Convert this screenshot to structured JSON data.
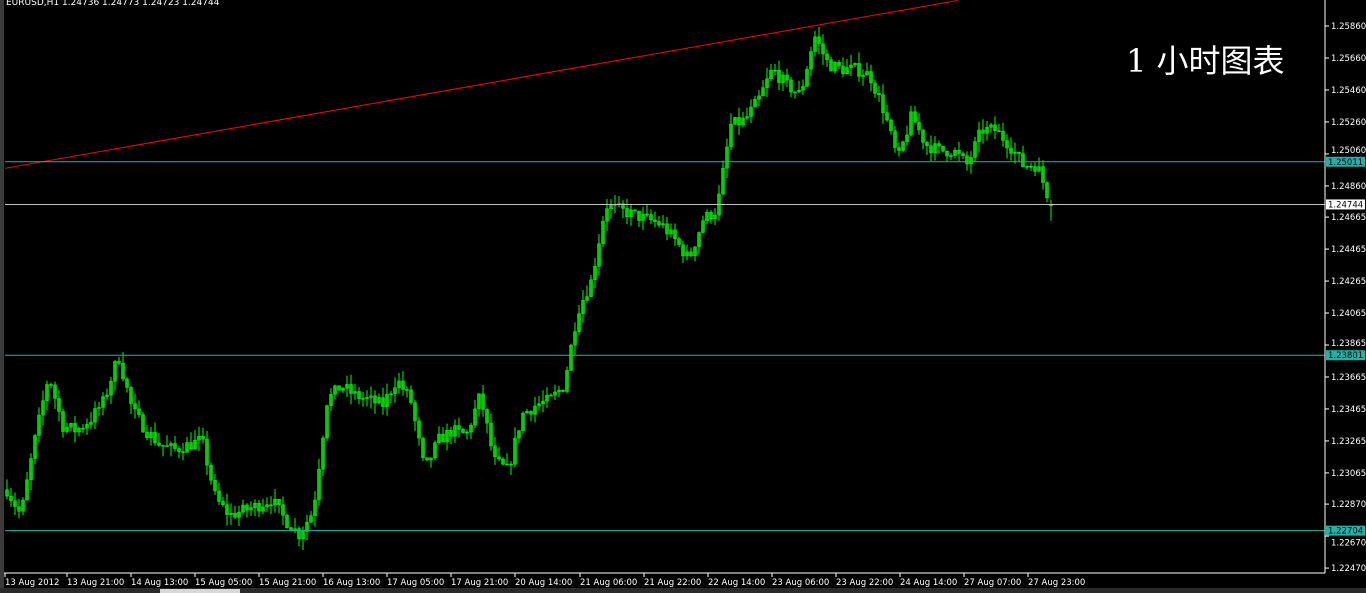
{
  "header": {
    "title": "EURUSD,H1  1.24736 1.24773 1.24723 1.24744",
    "overlay_text": "1 小时图表"
  },
  "colors": {
    "background": "#000000",
    "candles": "#00ff00",
    "trendline": "#ff0000",
    "horizontal_levels": "#20b2aa",
    "bid_line": "#c0c0c0",
    "axis": "#ffffff"
  },
  "chart_data": {
    "type": "candlestick",
    "symbol": "EURUSD",
    "timeframe": "H1",
    "ohlc_last": {
      "open": 1.24736,
      "high": 1.24773,
      "low": 1.24723,
      "close": 1.24744
    },
    "ylim": [
      1.2244,
      1.2602
    ],
    "grid": false,
    "y_ticks": [
      "1.25860",
      "1.25660",
      "1.25460",
      "1.25260",
      "1.25060",
      "1.24860",
      "1.24665",
      "1.24465",
      "1.24265",
      "1.24065",
      "1.23865",
      "1.23665",
      "1.23465",
      "1.23265",
      "1.23065",
      "1.22870",
      "1.22670",
      "1.22470"
    ],
    "x_ticks": [
      "13 Aug 2012",
      "13 Aug 21:00",
      "14 Aug 13:00",
      "15 Aug 05:00",
      "15 Aug 21:00",
      "16 Aug 13:00",
      "17 Aug 05:00",
      "17 Aug 21:00",
      "20 Aug 14:00",
      "21 Aug 06:00",
      "21 Aug 22:00",
      "22 Aug 14:00",
      "23 Aug 06:00",
      "23 Aug 22:00",
      "24 Aug 14:00",
      "27 Aug 07:00",
      "27 Aug 23:00"
    ],
    "approx_close_path": [
      1.2296,
      1.228,
      1.2327,
      1.2368,
      1.2336,
      1.2333,
      1.234,
      1.2352,
      1.238,
      1.2346,
      1.2333,
      1.2324,
      1.2321,
      1.2324,
      1.2327,
      1.229,
      1.228,
      1.2283,
      1.2286,
      1.229,
      1.2277,
      1.2268,
      1.2283,
      1.2352,
      1.2361,
      1.2355,
      1.2352,
      1.2349,
      1.2365,
      1.2352,
      1.2308,
      1.2327,
      1.2333,
      1.233,
      1.2355,
      1.2314,
      1.2308,
      1.2343,
      1.2349,
      1.2352,
      1.2361,
      1.2408,
      1.2427,
      1.2474,
      1.2471,
      1.2468,
      1.2465,
      1.2462,
      1.2452,
      1.244,
      1.2465,
      1.2471,
      1.2524,
      1.2527,
      1.254,
      1.2559,
      1.2549,
      1.2543,
      1.258,
      1.2562,
      1.2559,
      1.2559,
      1.2555,
      1.2533,
      1.2502,
      1.253,
      1.2512,
      1.2508,
      1.2508,
      1.2499,
      1.2521,
      1.2521,
      1.2512,
      1.2499,
      1.2499,
      1.24744
    ],
    "horizontal_levels": [
      {
        "price": 1.25011,
        "label": "1.25011"
      },
      {
        "price": 1.23801,
        "label": "1.23801"
      },
      {
        "price": 1.22704,
        "label": "1.22704"
      }
    ],
    "bid_line": {
      "price": 1.24744,
      "label": "1.24744"
    },
    "trendline": {
      "start_price": 1.2497,
      "end_price": 1.2602
    }
  }
}
